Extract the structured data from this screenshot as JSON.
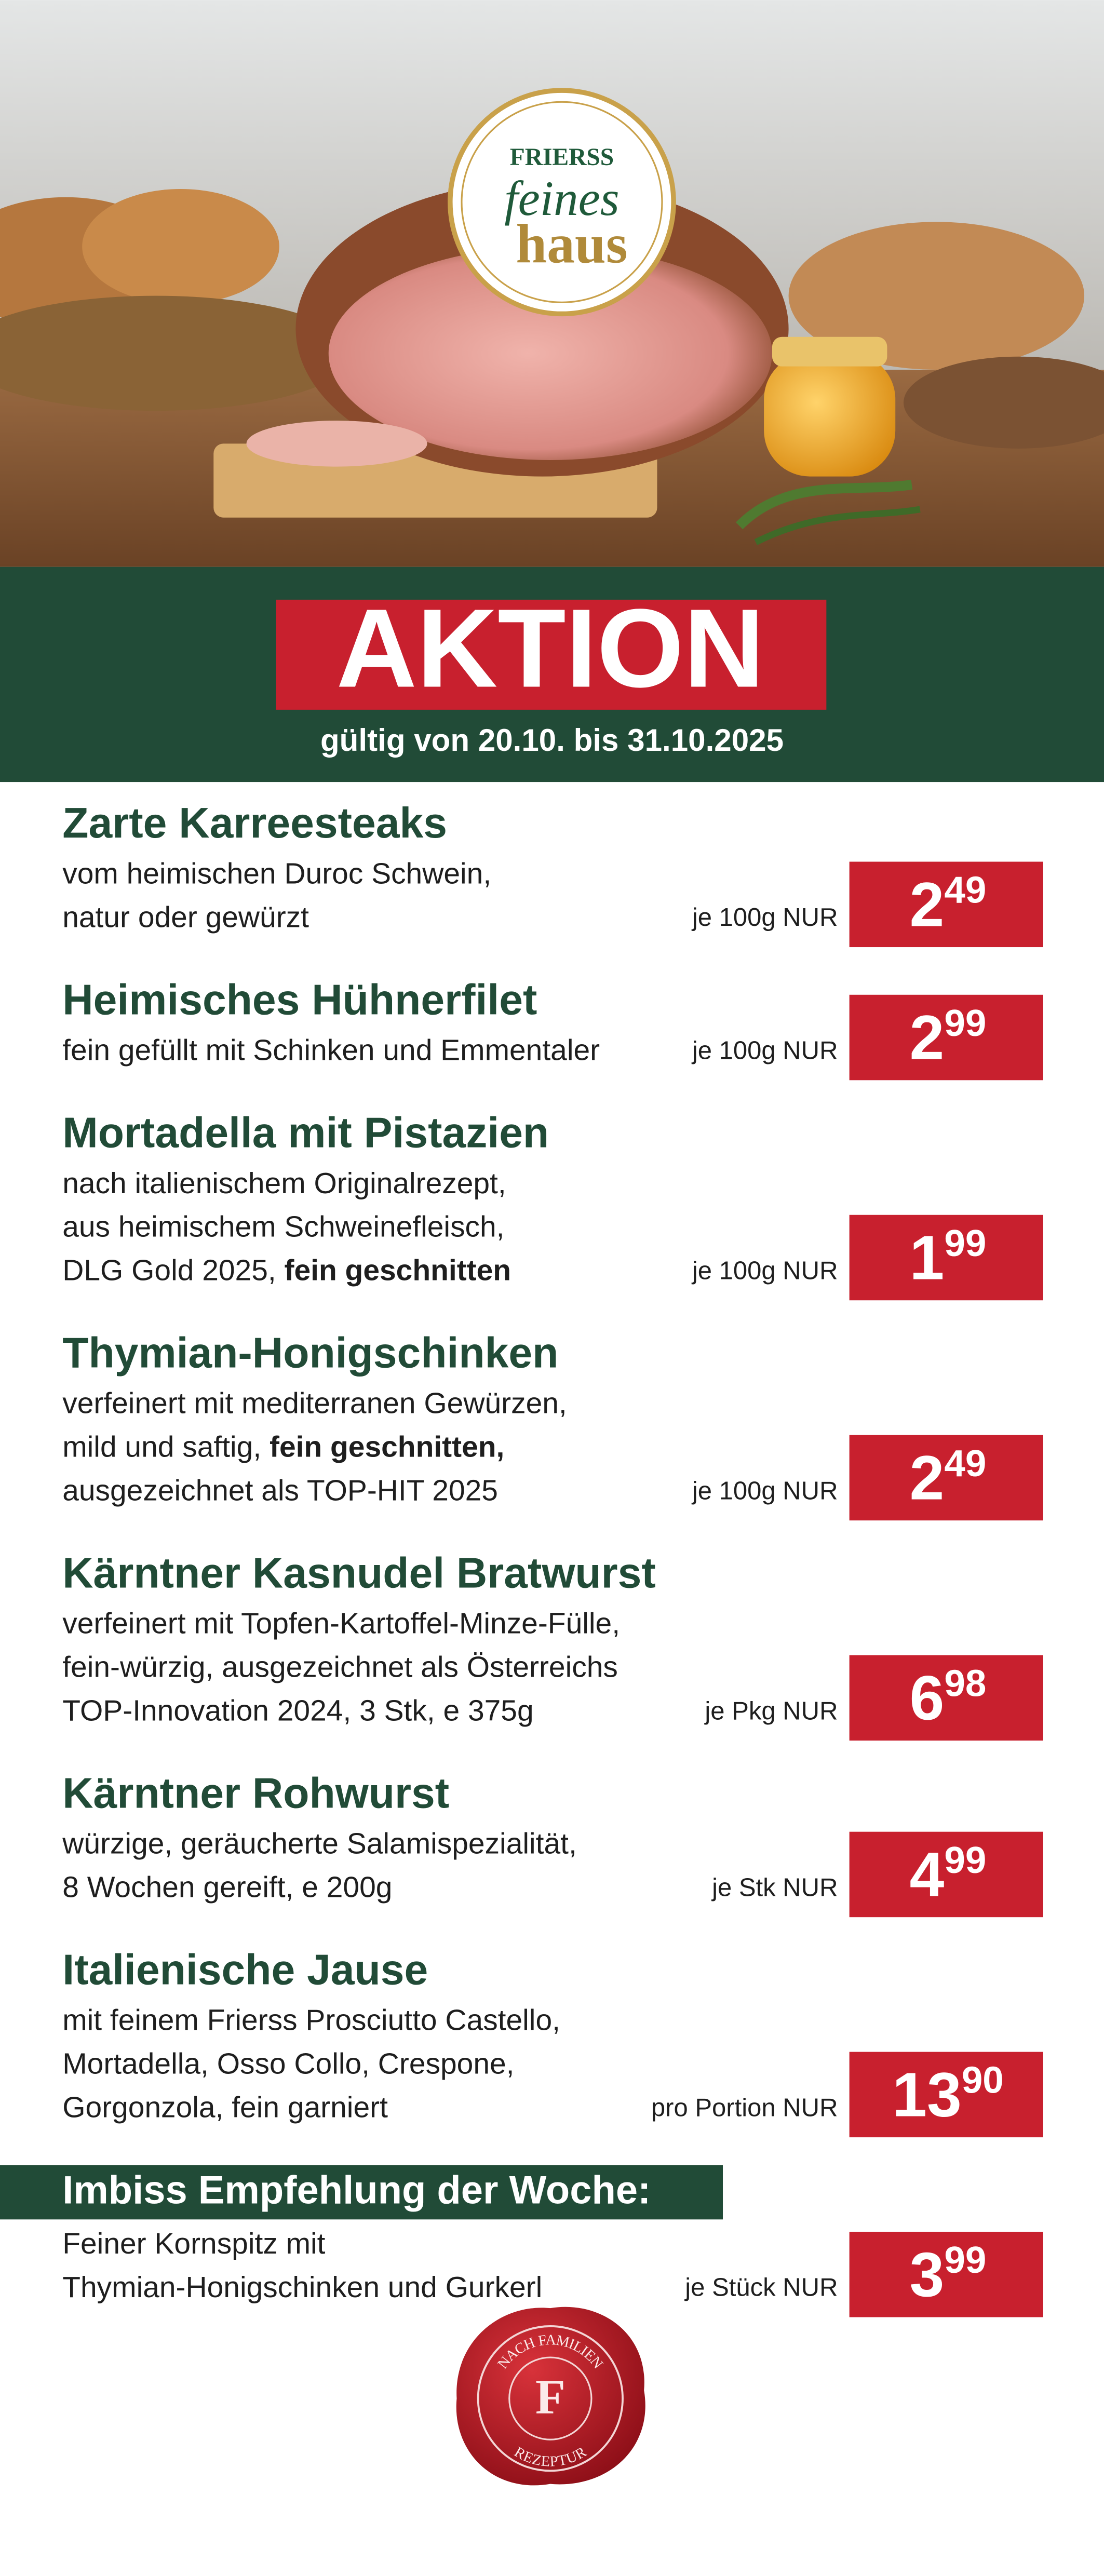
{
  "header": {
    "logo": {
      "brand": "FRIERSS",
      "line1": "feines",
      "line2": "haus"
    }
  },
  "banner": {
    "title": "AKTION",
    "validity": "gültig von 20.10. bis 31.10.2025"
  },
  "items": [
    {
      "name": "Zarte Karreesteaks",
      "description": [
        "vom heimischen Duroc Schwein,",
        "natur oder gewürzt"
      ],
      "unit": "je 100g NUR",
      "price": {
        "main": "2",
        "cents": "49"
      }
    },
    {
      "name": "Heimisches Hühnerfilet",
      "description": [
        "fein gefüllt mit Schinken und Emmentaler"
      ],
      "unit": "je 100g NUR",
      "price": {
        "main": "2",
        "cents": "99"
      }
    },
    {
      "name": "Mortadella mit Pistazien",
      "description": [
        "nach italienischem Originalrezept,",
        "aus heimischem Schweinefleisch,",
        {
          "text": "DLG Gold 2025, ",
          "bold": "fein geschnitten"
        }
      ],
      "unit": "je 100g NUR",
      "price": {
        "main": "1",
        "cents": "99"
      }
    },
    {
      "name": "Thymian-Honigschinken",
      "description": [
        "verfeinert mit mediterranen Gewürzen,",
        {
          "text": "mild und saftig, ",
          "bold": "fein geschnitten,"
        },
        "ausgezeichnet als TOP-HIT 2025"
      ],
      "unit": "je 100g NUR",
      "price": {
        "main": "2",
        "cents": "49"
      }
    },
    {
      "name": "Kärntner Kasnudel Bratwurst",
      "description": [
        "verfeinert mit Topfen-Kartoffel-Minze-Fülle,",
        "fein-würzig, ausgezeichnet als Österreichs",
        "TOP-Innovation 2024, 3 Stk, e 375g"
      ],
      "unit": "je Pkg NUR",
      "price": {
        "main": "6",
        "cents": "98"
      }
    },
    {
      "name": "Kärntner Rohwurst",
      "description": [
        "würzige, geräucherte Salamispezialität,",
        "8 Wochen gereift, e 200g"
      ],
      "unit": "je Stk NUR",
      "price": {
        "main": "4",
        "cents": "99"
      }
    },
    {
      "name": "Italienische Jause",
      "description": [
        "mit feinem Frierss Prosciutto Castello,",
        "Mortadella, Osso Collo, Crespone,",
        "Gorgonzola, fein garniert"
      ],
      "unit": "pro Portion NUR",
      "price": {
        "main": "13",
        "cents": "90"
      }
    }
  ],
  "recommendation": {
    "heading": "Imbiss Empfehlung der Woche:",
    "description": [
      "Feiner Kornspitz mit",
      "Thymian-Honigschinken und Gurkerl"
    ],
    "unit": "je Stück NUR",
    "price": {
      "main": "3",
      "cents": "99"
    }
  },
  "seal": {
    "top": "NACH FAMILIEN",
    "letter": "F",
    "bottom": "REZEPTUR"
  }
}
